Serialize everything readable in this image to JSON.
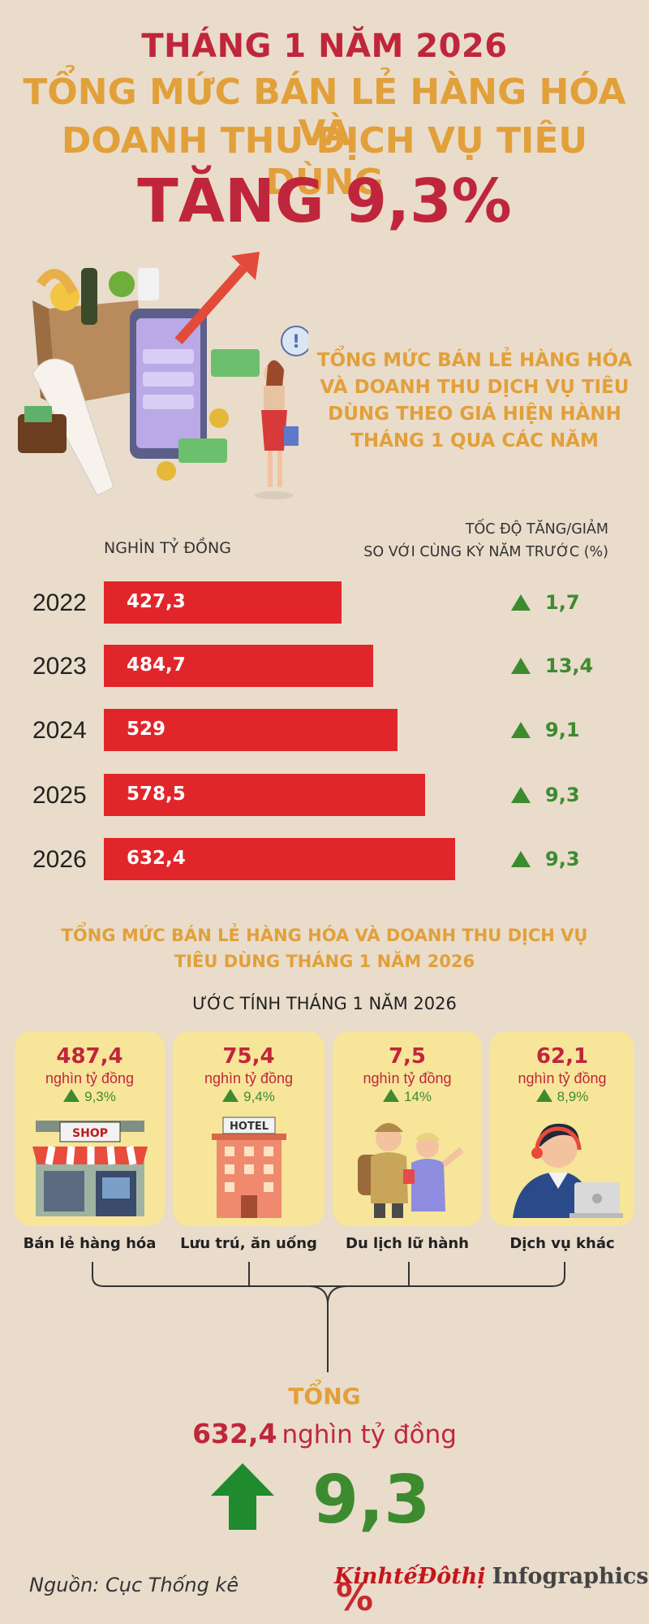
{
  "header": {
    "line1": "THÁNG 1 NĂM 2026",
    "line2": "TỔNG MỨC BÁN LẺ HÀNG HÓA VÀ",
    "line3": "DOANH THU DỊCH VỤ TIÊU DÙNG",
    "line4": "TĂNG 9,3%"
  },
  "section1": {
    "title_lines": [
      "TỔNG MỨC BÁN LẺ HÀNG HÓA",
      "VÀ DOANH THU DỊCH VỤ TIÊU",
      "DÙNG THEO GIÁ HIỆN HÀNH",
      "THÁNG 1 QUA CÁC NĂM"
    ],
    "unit_label": "NGHÌN TỶ ĐỒNG",
    "growth_label_lines": [
      "TỐC ĐỘ TĂNG/GIẢM",
      "SO VỚI CÙNG KỲ NĂM TRƯỚC (%)"
    ]
  },
  "chart_data": {
    "type": "bar",
    "orientation": "horizontal",
    "categories": [
      "2022",
      "2023",
      "2024",
      "2025",
      "2026"
    ],
    "values": [
      427.3,
      484.7,
      529,
      578.5,
      632.4
    ],
    "value_labels": [
      "427,3",
      "484,7",
      "529",
      "578,5",
      "632,4"
    ],
    "growth_labels": [
      "1,7",
      "13,4",
      "9,1",
      "9,3",
      "9,3"
    ],
    "growth": [
      1.7,
      13.4,
      9.1,
      9.3,
      9.3
    ],
    "xlim": [
      0,
      650
    ],
    "bar_color": "#e0262b",
    "growth_color": "#3d8b2f"
  },
  "section2": {
    "title_line1": "TỔNG MỨC BÁN LẺ HÀNG HÓA VÀ DOANH THU DỊCH VỤ",
    "title_line2": "TIÊU DÙNG THÁNG 1 NĂM 2026",
    "estimate_label": "ƯỚC TÍNH THÁNG 1 NĂM 2026",
    "cards": [
      {
        "value": "487,4",
        "unit": "nghìn tỷ đồng",
        "growth": "9,3%",
        "category": "Bán lẻ hàng hóa",
        "icon": "shop-icon",
        "sign": "SHOP"
      },
      {
        "value": "75,4",
        "unit": "nghìn tỷ đồng",
        "growth": "9,4%",
        "category": "Lưu trú, ăn uống",
        "icon": "hotel-icon",
        "sign": "HOTEL"
      },
      {
        "value": "7,5",
        "unit": "nghìn tỷ đồng",
        "growth": "14%",
        "category": "Du lịch lữ hành",
        "icon": "travelers-icon"
      },
      {
        "value": "62,1",
        "unit": "nghìn tỷ đồng",
        "growth": "8,9%",
        "category": "Dịch vụ khác",
        "icon": "support-agent-icon"
      }
    ]
  },
  "total": {
    "label": "TỔNG",
    "value": "632,4",
    "unit": "nghìn tỷ đồng",
    "growth": "9,3",
    "growth_symbol": "%"
  },
  "footer": {
    "source": "Nguồn: Cục Thống kê",
    "brand": "KinhtếĐôthị",
    "brand_suffix": "Infographics"
  }
}
